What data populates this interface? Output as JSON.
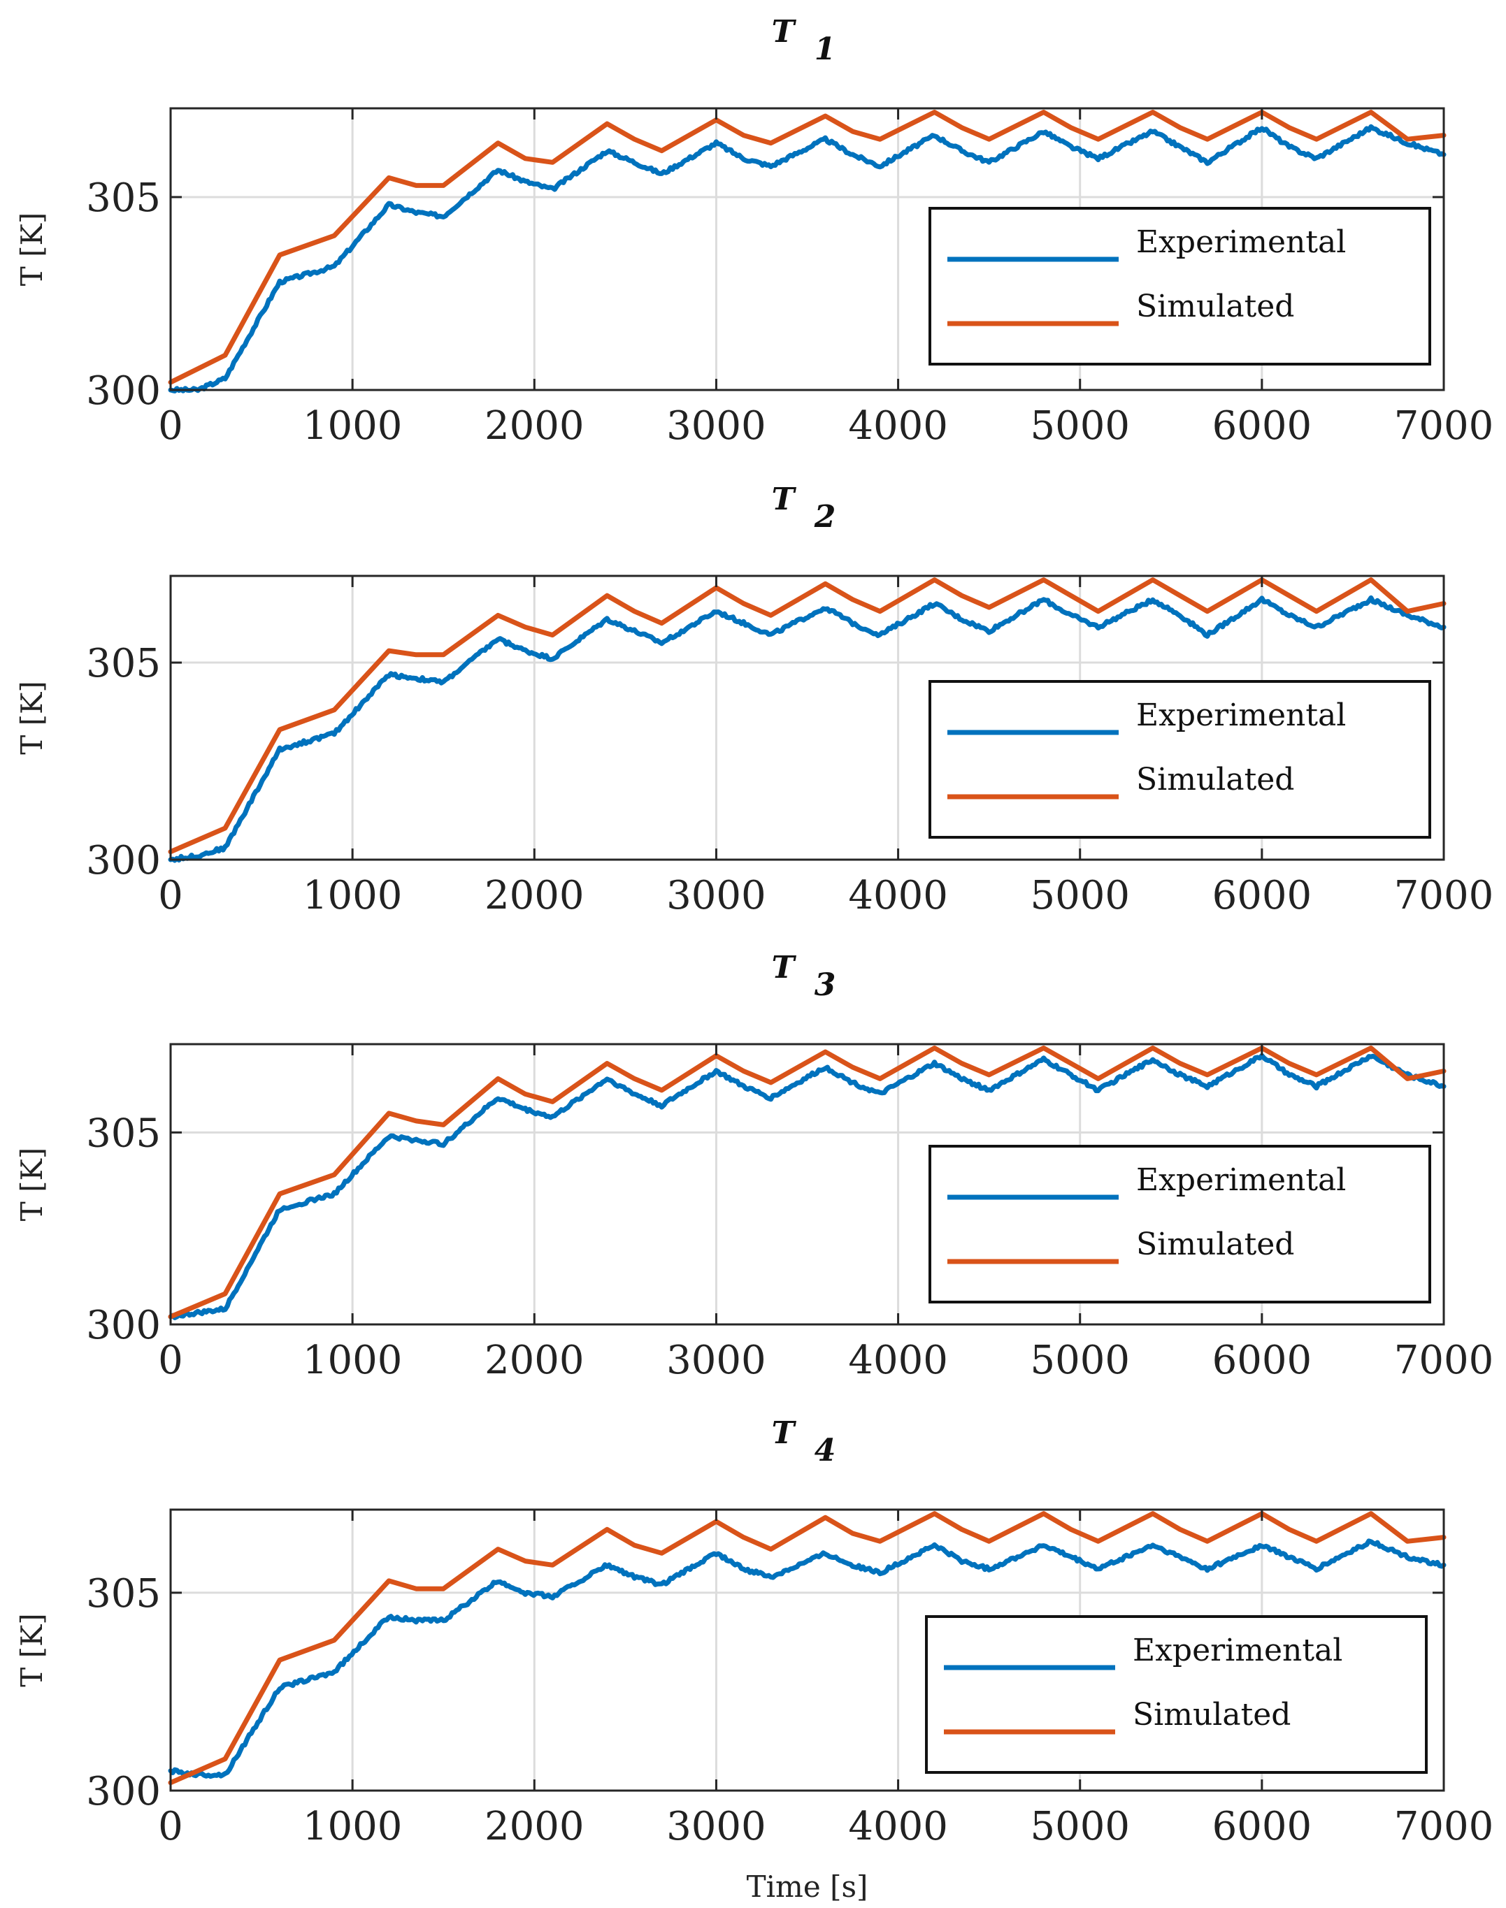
{
  "chart_data": [
    {
      "type": "line",
      "title": "T",
      "title_subscript": "1",
      "xlabel": "",
      "ylabel": "T [K]",
      "xlim": [
        0,
        7000
      ],
      "ylim": [
        300,
        307.3
      ],
      "xticks": [
        "0",
        "1000",
        "2000",
        "3000",
        "4000",
        "5000",
        "6000",
        "7000"
      ],
      "yticks": [
        "300",
        "305"
      ],
      "grid": true,
      "legend": {
        "position": "center-right",
        "labels": [
          "Experimental",
          "Simulated"
        ]
      },
      "series": [
        {
          "name": "Experimental",
          "color": "#0072BD",
          "x": [
            0,
            150,
            300,
            600,
            900,
            1200,
            1350,
            1500,
            1800,
            1950,
            2100,
            2400,
            2550,
            2700,
            3000,
            3150,
            3300,
            3600,
            3750,
            3900,
            4200,
            4350,
            4500,
            4800,
            4950,
            5100,
            5400,
            5550,
            5700,
            6000,
            6150,
            6300,
            6600,
            6800,
            7000
          ],
          "y": [
            300.0,
            300.0,
            300.3,
            302.8,
            303.2,
            304.8,
            304.6,
            304.5,
            305.7,
            305.4,
            305.2,
            306.2,
            305.9,
            305.6,
            306.4,
            306.0,
            305.8,
            306.5,
            306.1,
            305.8,
            306.6,
            306.2,
            305.9,
            306.7,
            306.3,
            306.0,
            306.7,
            306.3,
            305.9,
            306.8,
            306.3,
            306.0,
            306.8,
            306.4,
            306.1
          ]
        },
        {
          "name": "Simulated",
          "color": "#D95319",
          "x": [
            0,
            300,
            600,
            900,
            1200,
            1350,
            1500,
            1800,
            1950,
            2100,
            2400,
            2550,
            2700,
            3000,
            3150,
            3300,
            3600,
            3750,
            3900,
            4200,
            4350,
            4500,
            4800,
            4950,
            5100,
            5400,
            5550,
            5700,
            6000,
            6150,
            6300,
            6600,
            6800,
            7000
          ],
          "y": [
            300.2,
            300.9,
            303.5,
            304.0,
            305.5,
            305.3,
            305.3,
            306.4,
            306.0,
            305.9,
            306.9,
            306.5,
            306.2,
            307.0,
            306.6,
            306.4,
            307.1,
            306.7,
            306.5,
            307.2,
            306.8,
            306.5,
            307.2,
            306.8,
            306.5,
            307.2,
            306.8,
            306.5,
            307.2,
            306.8,
            306.5,
            307.2,
            306.5,
            306.6
          ]
        }
      ]
    },
    {
      "type": "line",
      "title": "T",
      "title_subscript": "2",
      "xlabel": "",
      "ylabel": "T [K]",
      "xlim": [
        0,
        7000
      ],
      "ylim": [
        300,
        307.2
      ],
      "xticks": [
        "0",
        "1000",
        "2000",
        "3000",
        "4000",
        "5000",
        "6000",
        "7000"
      ],
      "yticks": [
        "300",
        "305"
      ],
      "grid": true,
      "legend": {
        "position": "center-right",
        "labels": [
          "Experimental",
          "Simulated"
        ]
      },
      "series": [
        {
          "name": "Experimental",
          "color": "#0072BD",
          "x": [
            0,
            150,
            300,
            600,
            900,
            1200,
            1350,
            1500,
            1800,
            1950,
            2100,
            2400,
            2550,
            2700,
            3000,
            3150,
            3300,
            3600,
            3750,
            3900,
            4200,
            4350,
            4500,
            4800,
            4950,
            5100,
            5400,
            5550,
            5700,
            6000,
            6150,
            6300,
            6600,
            6800,
            7000
          ],
          "y": [
            300.0,
            300.1,
            300.3,
            302.8,
            303.2,
            304.7,
            304.6,
            304.5,
            305.6,
            305.3,
            305.1,
            306.1,
            305.8,
            305.5,
            306.3,
            306.0,
            305.7,
            306.4,
            306.0,
            305.7,
            306.5,
            306.1,
            305.8,
            306.6,
            306.2,
            305.9,
            306.6,
            306.2,
            305.7,
            306.6,
            306.2,
            305.9,
            306.6,
            306.2,
            305.9
          ]
        },
        {
          "name": "Simulated",
          "color": "#D95319",
          "x": [
            0,
            300,
            600,
            900,
            1200,
            1350,
            1500,
            1800,
            1950,
            2100,
            2400,
            2550,
            2700,
            3000,
            3150,
            3300,
            3600,
            3750,
            3900,
            4200,
            4350,
            4500,
            4800,
            4950,
            5100,
            5400,
            5550,
            5700,
            6000,
            6150,
            6300,
            6600,
            6800,
            7000
          ],
          "y": [
            300.2,
            300.8,
            303.3,
            303.8,
            305.3,
            305.2,
            305.2,
            306.2,
            305.9,
            305.7,
            306.7,
            306.3,
            306.0,
            306.9,
            306.5,
            306.2,
            307.0,
            306.6,
            306.3,
            307.1,
            306.7,
            306.4,
            307.1,
            306.7,
            306.3,
            307.1,
            306.7,
            306.3,
            307.1,
            306.7,
            306.3,
            307.1,
            306.3,
            306.5
          ]
        }
      ]
    },
    {
      "type": "line",
      "title": "T",
      "title_subscript": "3",
      "xlabel": "",
      "ylabel": "T [K]",
      "xlim": [
        0,
        7000
      ],
      "ylim": [
        300,
        307.3
      ],
      "xticks": [
        "0",
        "1000",
        "2000",
        "3000",
        "4000",
        "5000",
        "6000",
        "7000"
      ],
      "yticks": [
        "300",
        "305"
      ],
      "grid": true,
      "legend": {
        "position": "center-right",
        "labels": [
          "Experimental",
          "Simulated"
        ]
      },
      "series": [
        {
          "name": "Experimental",
          "color": "#0072BD",
          "x": [
            0,
            150,
            300,
            600,
            900,
            1200,
            1350,
            1500,
            1800,
            1950,
            2100,
            2400,
            2550,
            2700,
            3000,
            3150,
            3300,
            3600,
            3750,
            3900,
            4200,
            4350,
            4500,
            4800,
            4950,
            5100,
            5400,
            5550,
            5700,
            6000,
            6150,
            6300,
            6600,
            6800,
            7000
          ],
          "y": [
            300.2,
            300.3,
            300.4,
            303.0,
            303.4,
            304.9,
            304.8,
            304.7,
            305.9,
            305.6,
            305.4,
            306.4,
            306.0,
            305.7,
            306.6,
            306.2,
            305.9,
            306.7,
            306.3,
            306.0,
            306.8,
            306.4,
            306.1,
            306.9,
            306.5,
            306.1,
            306.9,
            306.5,
            306.2,
            307.0,
            306.5,
            306.2,
            307.0,
            306.5,
            306.2
          ]
        },
        {
          "name": "Simulated",
          "color": "#D95319",
          "x": [
            0,
            300,
            600,
            900,
            1200,
            1350,
            1500,
            1800,
            1950,
            2100,
            2400,
            2550,
            2700,
            3000,
            3150,
            3300,
            3600,
            3750,
            3900,
            4200,
            4350,
            4500,
            4800,
            4950,
            5100,
            5400,
            5550,
            5700,
            6000,
            6150,
            6300,
            6600,
            6800,
            7000
          ],
          "y": [
            300.2,
            300.8,
            303.4,
            303.9,
            305.5,
            305.3,
            305.2,
            306.4,
            306.0,
            305.8,
            306.8,
            306.4,
            306.1,
            307.0,
            306.6,
            306.3,
            307.1,
            306.7,
            306.4,
            307.2,
            306.8,
            306.5,
            307.2,
            306.8,
            306.4,
            307.2,
            306.8,
            306.5,
            307.2,
            306.8,
            306.5,
            307.2,
            306.4,
            306.6
          ]
        }
      ]
    },
    {
      "type": "line",
      "title": "T",
      "title_subscript": "4",
      "xlabel": "Time [s]",
      "ylabel": "T [K]",
      "xlim": [
        0,
        7000
      ],
      "ylim": [
        300,
        307.1
      ],
      "xticks": [
        "0",
        "1000",
        "2000",
        "3000",
        "4000",
        "5000",
        "6000",
        "7000"
      ],
      "yticks": [
        "300",
        "305"
      ],
      "grid": true,
      "legend": {
        "position": "center-right",
        "labels": [
          "Experimental",
          "Simulated"
        ]
      },
      "series": [
        {
          "name": "Experimental",
          "color": "#0072BD",
          "x": [
            0,
            150,
            300,
            600,
            900,
            1200,
            1350,
            1500,
            1800,
            1950,
            2100,
            2400,
            2550,
            2700,
            3000,
            3150,
            3300,
            3600,
            3750,
            3900,
            4200,
            4350,
            4500,
            4800,
            4950,
            5100,
            5400,
            5550,
            5700,
            6000,
            6150,
            6300,
            6600,
            6800,
            7000
          ],
          "y": [
            300.5,
            300.4,
            300.4,
            302.6,
            303.0,
            304.4,
            304.3,
            304.3,
            305.3,
            305.0,
            304.9,
            305.7,
            305.4,
            305.2,
            306.0,
            305.6,
            305.4,
            306.0,
            305.7,
            305.5,
            306.2,
            305.8,
            305.6,
            306.2,
            305.9,
            305.6,
            306.2,
            305.9,
            305.6,
            306.2,
            305.9,
            305.6,
            306.3,
            305.9,
            305.7
          ]
        },
        {
          "name": "Simulated",
          "color": "#D95319",
          "x": [
            0,
            300,
            600,
            900,
            1200,
            1350,
            1500,
            1800,
            1950,
            2100,
            2400,
            2550,
            2700,
            3000,
            3150,
            3300,
            3600,
            3750,
            3900,
            4200,
            4350,
            4500,
            4800,
            4950,
            5100,
            5400,
            5550,
            5700,
            6000,
            6150,
            6300,
            6600,
            6800,
            7000
          ],
          "y": [
            300.2,
            300.8,
            303.3,
            303.8,
            305.3,
            305.1,
            305.1,
            306.1,
            305.8,
            305.7,
            306.6,
            306.2,
            306.0,
            306.8,
            306.4,
            306.1,
            306.9,
            306.5,
            306.3,
            307.0,
            306.6,
            306.3,
            307.0,
            306.6,
            306.3,
            307.0,
            306.6,
            306.3,
            307.0,
            306.6,
            306.3,
            307.0,
            306.3,
            306.4
          ]
        }
      ]
    }
  ]
}
